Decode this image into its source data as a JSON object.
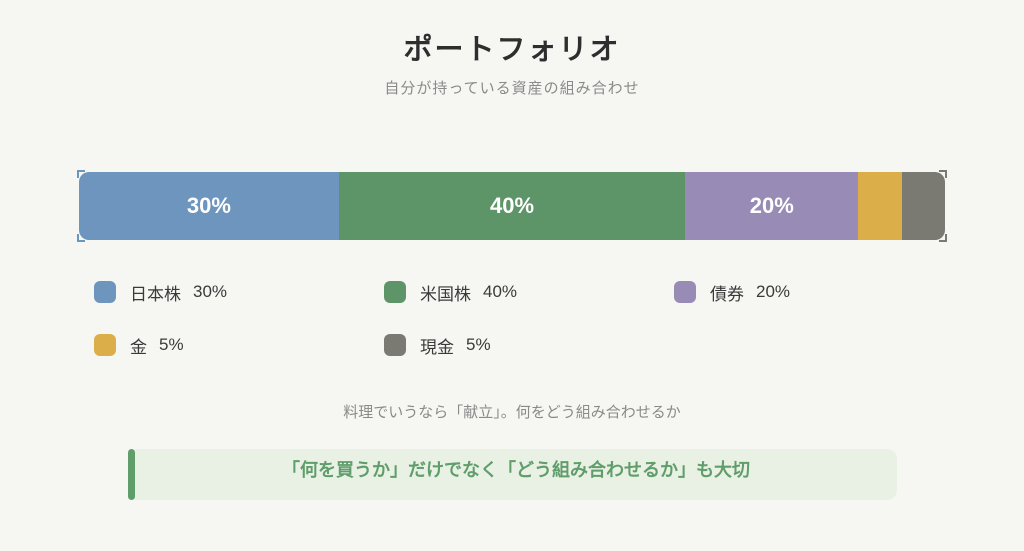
{
  "header": {
    "title": "ポートフォリオ",
    "subtitle": "自分が持っている資産の組み合わせ"
  },
  "colors": {
    "jp_stocks": "#6d95bd",
    "us_stocks": "#5e9568",
    "bonds": "#988bb5",
    "gold": "#dcae49",
    "cash": "#7a7a72",
    "accent": "#5f9e6b"
  },
  "chart_data": {
    "type": "bar",
    "orientation": "horizontal-stacked-100",
    "title": "ポートフォリオ",
    "subtitle": "自分が持っている資産の組み合わせ",
    "categories": [
      "日本株",
      "米国株",
      "債券",
      "金",
      "現金"
    ],
    "values": [
      30,
      40,
      20,
      5,
      5
    ],
    "unit": "%",
    "segment_labels": [
      "30%",
      "40%",
      "20%",
      "",
      ""
    ],
    "colors": [
      "#6d95bd",
      "#5e9568",
      "#988bb5",
      "#dcae49",
      "#7a7a72"
    ],
    "legend": [
      {
        "label": "日本株",
        "value": "30%"
      },
      {
        "label": "米国株",
        "value": "40%"
      },
      {
        "label": "債券",
        "value": "20%"
      },
      {
        "label": "金",
        "value": "5%"
      },
      {
        "label": "現金",
        "value": "5%"
      }
    ],
    "legend_placement": "bottom",
    "grid": false
  },
  "note": "料理でいうなら「献立」。何をどう組み合わせるか",
  "callout": {
    "text": "「何を買うか」だけでなく「どう組み合わせるか」も大切"
  }
}
